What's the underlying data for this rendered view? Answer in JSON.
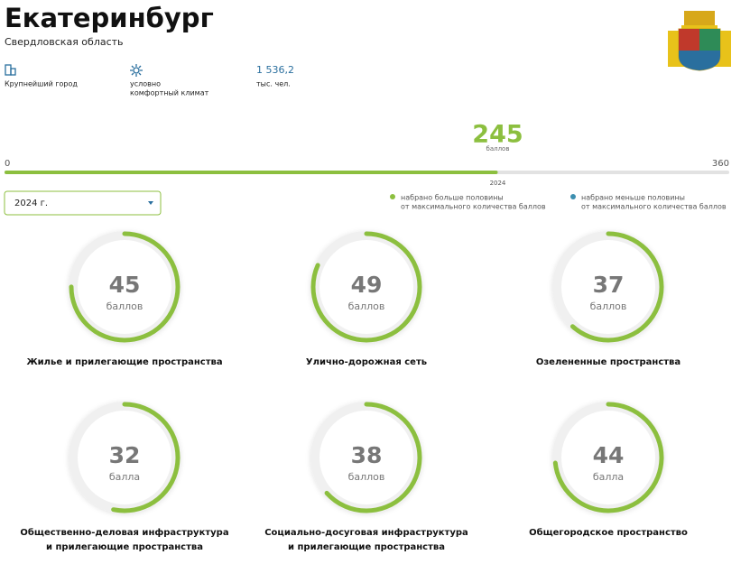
{
  "header": {
    "title": "Екатеринбург",
    "region": "Свердловская область"
  },
  "facts": [
    {
      "lines": [
        "Крупнейший город"
      ]
    },
    {
      "lines": [
        "условно",
        "комфортный климат"
      ]
    },
    {
      "value": "1 536,2",
      "lines": [
        "тыс. чел."
      ]
    }
  ],
  "score": {
    "value": 245,
    "unit": "баллов",
    "year": "2024",
    "min": 0,
    "max": 360
  },
  "year_select": "2024 г.",
  "legend": [
    {
      "lines": [
        "набрано больше половины",
        "от максимального количества баллов"
      ],
      "color": "#8cbf3f"
    },
    {
      "lines": [
        "набрано меньше половины",
        "от максимального количества баллов"
      ],
      "color": "#3d8fb0"
    }
  ],
  "categories": [
    {
      "value": 45,
      "unit": "баллов",
      "lines": [
        "Жилье и прилегающие пространства"
      ]
    },
    {
      "value": 49,
      "unit": "баллов",
      "lines": [
        "Улично-дорожная сеть"
      ]
    },
    {
      "value": 37,
      "unit": "баллов",
      "lines": [
        "Озелененные пространства"
      ]
    },
    {
      "value": 32,
      "unit": "балла",
      "lines": [
        "Общественно-деловая инфраструктура",
        "и прилегающие пространства"
      ]
    },
    {
      "value": 38,
      "unit": "баллов",
      "lines": [
        "Социально-досуговая инфраструктура",
        "и прилегающие пространства"
      ]
    },
    {
      "value": 44,
      "unit": "балла",
      "lines": [
        "Общегородское пространство"
      ]
    }
  ]
}
